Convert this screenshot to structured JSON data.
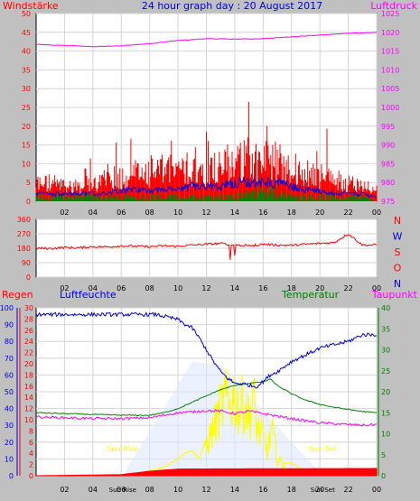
{
  "header": {
    "title": "24 hour graph day : 20 August 2017",
    "left_label": "Windstärke",
    "right_label": "Luftdruck"
  },
  "colors": {
    "red": "#ff0000",
    "blue": "#0000dd",
    "green": "#008000",
    "magenta": "#ff00ff",
    "yellow": "#ffff00",
    "background": "#c0c0c0",
    "plot": "#ffffff",
    "grid": "#d4d4d4"
  },
  "chart_data": [
    {
      "type": "line",
      "x_ticks": [
        "02",
        "04",
        "06",
        "08",
        "10",
        "12",
        "14",
        "16",
        "18",
        "20",
        "22",
        "00"
      ],
      "left_axis": {
        "label": "Windstärke",
        "ticks": [
          0,
          5,
          10,
          15,
          20,
          25,
          30,
          35,
          40,
          45,
          50
        ],
        "range": [
          0,
          50
        ]
      },
      "right_axis": {
        "label": "Luftdruck",
        "ticks": [
          975,
          980,
          985,
          990,
          995,
          1000,
          1005,
          1010,
          1015,
          1020,
          1025
        ],
        "range": [
          975,
          1025
        ]
      },
      "series": [
        {
          "role": "wind gust",
          "color": "#ff0000",
          "hours": [
            0,
            1,
            2,
            3,
            4,
            5,
            6,
            7,
            8,
            9,
            10,
            11,
            12,
            13,
            14,
            15,
            16,
            17,
            18,
            19,
            20,
            21,
            22,
            23,
            24
          ],
          "values": [
            6,
            6,
            5,
            5,
            6,
            7,
            8,
            9,
            10,
            10,
            10,
            11,
            11,
            12,
            13,
            14,
            14,
            13,
            11,
            9,
            8,
            7,
            6,
            5,
            4
          ]
        },
        {
          "role": "wind average",
          "color": "#0000dd",
          "hours": [
            0,
            1,
            2,
            3,
            4,
            5,
            6,
            7,
            8,
            9,
            10,
            11,
            12,
            13,
            14,
            15,
            16,
            17,
            18,
            19,
            20,
            21,
            22,
            23,
            24
          ],
          "values": [
            2,
            2,
            2,
            2,
            2,
            2,
            3,
            3,
            3,
            3,
            3,
            4,
            4,
            4,
            5,
            5,
            5,
            5,
            4,
            3,
            3,
            2,
            2,
            2,
            1
          ]
        },
        {
          "role": "wind minimum",
          "color": "#008000",
          "hours": [
            0,
            1,
            2,
            3,
            4,
            5,
            6,
            7,
            8,
            9,
            10,
            11,
            12,
            13,
            14,
            15,
            16,
            17,
            18,
            19,
            20,
            21,
            22,
            23,
            24
          ],
          "values": [
            1,
            1,
            1,
            1,
            1,
            1,
            1,
            1,
            1,
            1,
            1,
            1,
            1,
            1,
            1,
            2,
            2,
            2,
            1,
            1,
            1,
            1,
            1,
            1,
            0
          ]
        },
        {
          "role": "pressure",
          "axis": "right",
          "color": "#ff00ff",
          "hours": [
            0,
            2,
            4,
            6,
            8,
            10,
            12,
            14,
            16,
            18,
            20,
            22,
            24
          ],
          "values": [
            1016.8,
            1016.5,
            1016.2,
            1016.4,
            1017,
            1017.8,
            1018.3,
            1018.2,
            1018.3,
            1018.8,
            1019.3,
            1019.7,
            1020
          ]
        }
      ]
    },
    {
      "type": "line",
      "x_ticks": [
        "02",
        "04",
        "06",
        "08",
        "10",
        "12",
        "14",
        "16",
        "18",
        "20",
        "22",
        "00"
      ],
      "y_axis": {
        "ticks": [
          0,
          90,
          180,
          270,
          360
        ],
        "range": [
          0,
          360
        ]
      },
      "direction_labels": [
        "N",
        "W",
        "S",
        "O",
        "N"
      ],
      "series": [
        {
          "role": "wind direction",
          "color": "#ff0000",
          "hours": [
            0,
            1,
            2,
            3,
            4,
            5,
            6,
            7,
            8,
            9,
            10,
            11,
            12,
            13,
            14,
            15,
            16,
            17,
            18,
            19,
            20,
            21,
            22,
            23,
            24
          ],
          "values": [
            180,
            178,
            185,
            182,
            190,
            188,
            195,
            192,
            190,
            195,
            192,
            200,
            205,
            210,
            200,
            195,
            205,
            200,
            198,
            205,
            210,
            215,
            270,
            200,
            200
          ]
        }
      ]
    },
    {
      "type": "line",
      "x_ticks": [
        "02",
        "04",
        "06",
        "08",
        "10",
        "12",
        "14",
        "16",
        "18",
        "20",
        "22",
        "00"
      ],
      "labels": {
        "rain": "Regen",
        "humidity": "Luftfeuchte",
        "temperature": "Temperatur",
        "dewpoint": "Taupunkt"
      },
      "axes": {
        "rain": {
          "ticks": [
            0,
            2,
            4,
            6,
            8,
            10,
            12,
            14,
            16,
            18,
            20,
            22,
            24,
            26,
            28,
            30
          ],
          "range": [
            0,
            30
          ]
        },
        "humidity": {
          "ticks": [
            0,
            10,
            20,
            30,
            40,
            50,
            60,
            70,
            80,
            90,
            100
          ],
          "range": [
            0,
            100
          ]
        },
        "temperature": {
          "ticks": [
            0,
            5,
            10,
            15,
            20,
            25,
            30,
            35,
            40
          ],
          "range": [
            0,
            40
          ]
        }
      },
      "annotations": {
        "sun_rise": "Sun Rise",
        "sun_set": "Sun Set",
        "sun_rise_hour": 6.1,
        "sun_set_hour": 20.2
      },
      "series": [
        {
          "role": "humidity",
          "axis": "humidity",
          "color": "#0000dd",
          "hours": [
            0,
            2,
            4,
            6,
            8,
            8.5,
            9,
            10,
            10.5,
            11,
            11.5,
            12,
            12.5,
            13,
            13.5,
            14,
            14.5,
            15,
            15.5,
            16,
            16.5,
            17,
            18,
            19,
            20,
            21,
            22,
            23,
            24
          ],
          "values": [
            96,
            96,
            96,
            96,
            96,
            96,
            95,
            93,
            90,
            88,
            82,
            75,
            68,
            62,
            58,
            55,
            55,
            54,
            53,
            56,
            60,
            62,
            68,
            72,
            76,
            78,
            80,
            84,
            84
          ]
        },
        {
          "role": "temperature",
          "axis": "temperature",
          "color": "#008000",
          "hours": [
            0,
            2,
            4,
            6,
            8,
            9,
            10,
            11,
            12,
            12.5,
            13,
            14,
            15,
            16,
            16.5,
            17,
            18,
            19,
            20,
            21,
            22,
            23,
            24
          ],
          "values": [
            15,
            14.8,
            14.6,
            14.4,
            14.4,
            15,
            16,
            17.5,
            19,
            19.8,
            20.5,
            21.5,
            22,
            22.4,
            23,
            21.5,
            19.5,
            18,
            17,
            16.3,
            15.8,
            15.3,
            15
          ]
        },
        {
          "role": "dewpoint",
          "axis": "temperature",
          "color": "#ff00ff",
          "hours": [
            0,
            2,
            4,
            6,
            8,
            10,
            11,
            12,
            13,
            14,
            15,
            16,
            17,
            18,
            19,
            20,
            21,
            22,
            23,
            24
          ],
          "values": [
            14,
            13.8,
            13.6,
            13.6,
            13.8,
            15,
            15.2,
            15.5,
            15.4,
            14.8,
            15.4,
            14.8,
            14.2,
            13.6,
            13.1,
            12.6,
            12.4,
            12.2,
            12,
            12.2
          ]
        },
        {
          "role": "solar",
          "axis": "temperature",
          "color": "#ffff00",
          "hours": [
            6.1,
            7,
            8,
            9,
            10,
            10.5,
            11,
            11.5,
            12,
            12.3,
            12.6,
            13,
            13.3,
            13.6,
            14,
            14.3,
            14.6,
            15,
            15.3,
            15.6,
            16,
            16.3,
            16.6,
            17,
            17.5,
            18,
            18.5,
            19,
            20.2
          ],
          "values": [
            0,
            0.5,
            1.2,
            2,
            4,
            5.5,
            6,
            4,
            9,
            12,
            15,
            20,
            23,
            21,
            24,
            19,
            22,
            17,
            23,
            14,
            11,
            7,
            14,
            5,
            3,
            3,
            2,
            1,
            0
          ]
        },
        {
          "role": "rain",
          "axis": "rain",
          "color": "#ff0000",
          "hours": [
            0,
            6,
            7,
            8,
            9,
            10,
            24
          ],
          "values": [
            0,
            0.2,
            0.5,
            0.8,
            1,
            1.2,
            1.3
          ]
        }
      ]
    }
  ]
}
